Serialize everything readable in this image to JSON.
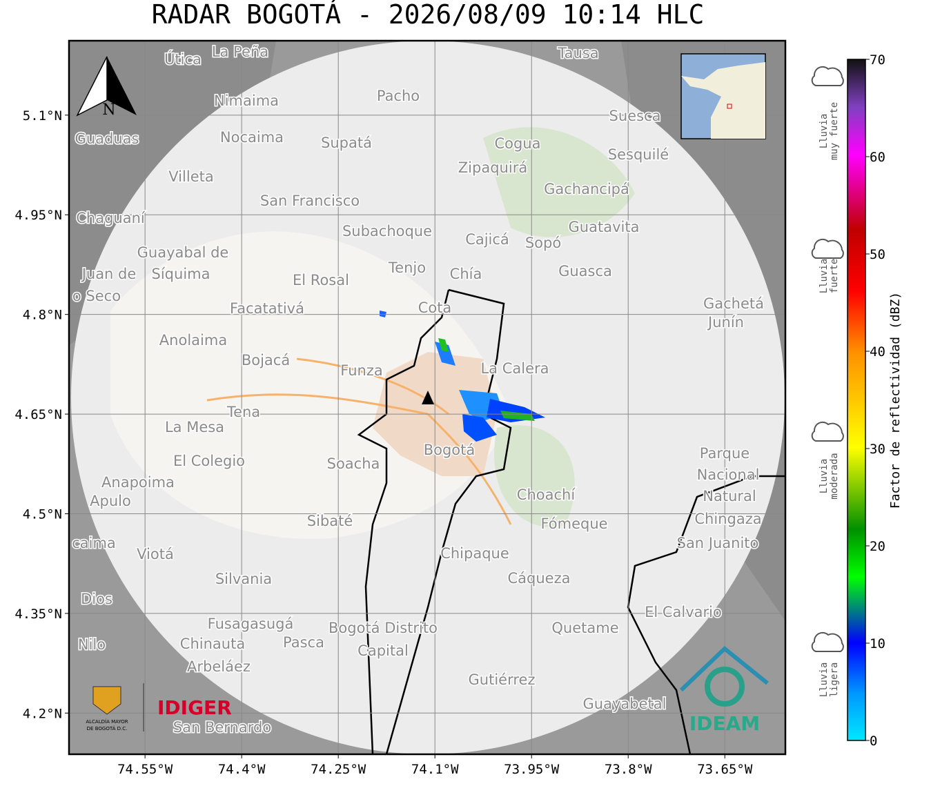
{
  "title": "RADAR BOGOTÁ - 2026/08/09 10:14 HLC",
  "map": {
    "xlim": [
      -74.668,
      -73.556
    ],
    "ylim": [
      4.138,
      5.212
    ],
    "xticks": [
      {
        "value": -74.55,
        "label": "74.55°W"
      },
      {
        "value": -74.4,
        "label": "74.4°W"
      },
      {
        "value": -74.25,
        "label": "74.25°W"
      },
      {
        "value": -74.1,
        "label": "74.1°W"
      },
      {
        "value": -73.95,
        "label": "73.95°W"
      },
      {
        "value": -73.8,
        "label": "73.8°W"
      },
      {
        "value": -73.65,
        "label": "73.65°W"
      }
    ],
    "yticks": [
      {
        "value": 5.1,
        "label": "5.1°N"
      },
      {
        "value": 4.95,
        "label": "4.95°N"
      },
      {
        "value": 4.8,
        "label": "4.8°N"
      },
      {
        "value": 4.65,
        "label": "4.65°N"
      },
      {
        "value": 4.5,
        "label": "4.5°N"
      },
      {
        "value": 4.35,
        "label": "4.35°N"
      },
      {
        "value": 4.2,
        "label": "4.2°N"
      }
    ],
    "north": "N",
    "places": [
      "La Peña",
      "Útica",
      "Tausa",
      "Pacho",
      "Nimaima",
      "Suesca",
      "Guaduas",
      "Nocaima",
      "Supatá",
      "Cogua",
      "Sesquilé",
      "Zipaquirá",
      "Villeta",
      "Gachancipá",
      "San Francisco",
      "Chaguaní",
      "Guatavita",
      "Subachoque",
      "Cajicá",
      "Sopó",
      "Guayabal de",
      "Síquima",
      "Tenjo",
      "Chía",
      "Guasca",
      "El Rosal",
      "Juan de",
      "o Seco",
      "Cota",
      "Facatativá",
      "Gachetá",
      "Junín",
      "Anolaima",
      "Bojacá",
      "Funza",
      "La Calera",
      "Tena",
      "La Mesa",
      "Bogotá",
      "Soacha",
      "Parque",
      "Nacional",
      "Natural",
      "Chingaza",
      "El Colegio",
      "Anapoima",
      "Apulo",
      "Choachí",
      "Sibaté",
      "Fómeque",
      "San Juanito",
      "caima",
      "Viotá",
      "Chipaque",
      "Silvania",
      "Cáqueza",
      "Dios",
      "El Calvario",
      "Fusagasugá",
      "Bogotá Distrito",
      "Capital",
      "Quetame",
      "Nilo",
      "Chinauta",
      "Pasca",
      "Arbeláez",
      "Gutiérrez",
      "Guayabetal",
      "San Bernardo"
    ]
  },
  "colorbar": {
    "label": "Factor de reflectividad (dBZ)",
    "lim": [
      0,
      70
    ],
    "ticks": [
      0,
      10,
      20,
      30,
      40,
      50,
      60,
      70
    ]
  },
  "legend": [
    [
      "Lluvia",
      "muy fuerte"
    ],
    [
      "Lluvia",
      "fuerte"
    ],
    [
      "Lluvia",
      "moderada"
    ],
    [
      "Lluvia",
      "ligera"
    ]
  ],
  "logos": {
    "alcaldia": [
      "ALCALDÍA MAYOR",
      "DE BOGOTÁ D.C."
    ],
    "idiger": "IDIGER",
    "ideam": "IDEAM"
  }
}
